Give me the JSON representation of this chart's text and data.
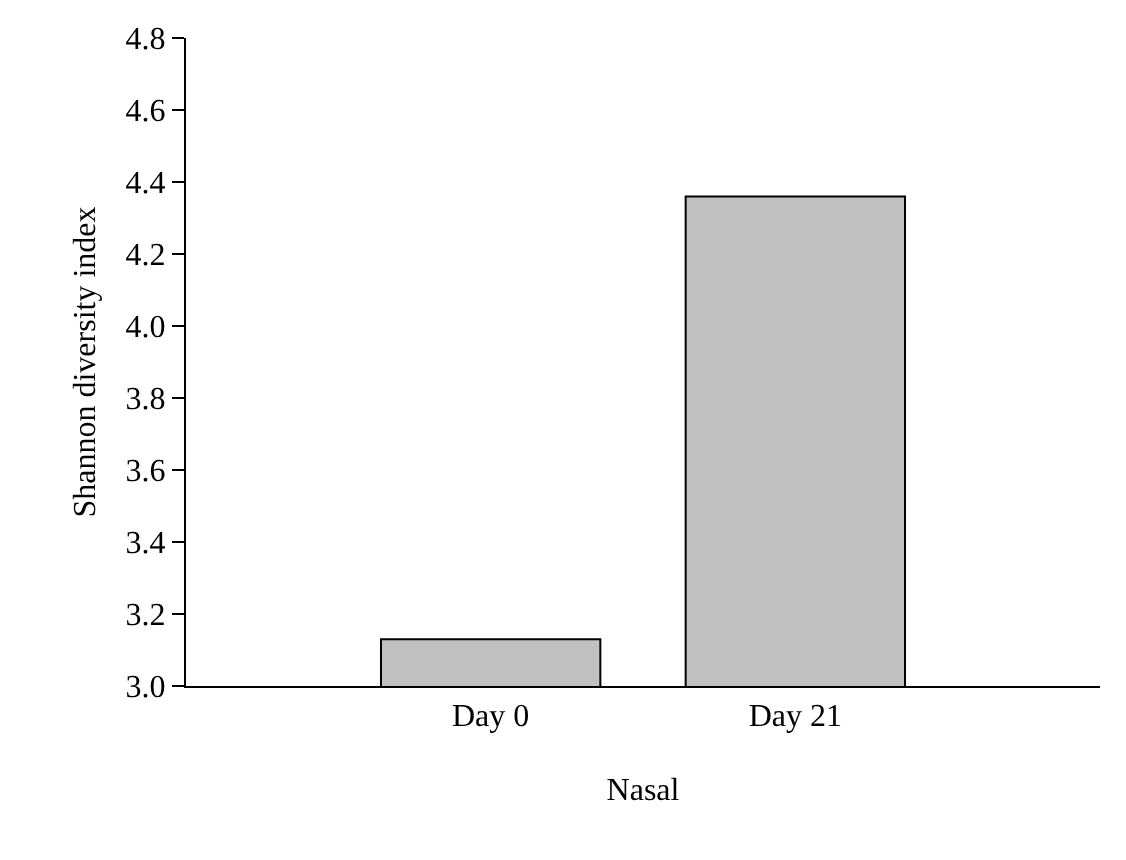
{
  "chart_data": {
    "type": "bar",
    "xlabel": "Nasal",
    "ylabel": "Shannon diversity index",
    "categories": [
      "Day 0",
      "Day 21"
    ],
    "values": [
      3.13,
      4.36
    ],
    "color": "#c0c0c0",
    "ylim": [
      3.0,
      4.8
    ],
    "yticks": [
      {
        "value": 3.0,
        "label": "3.0"
      },
      {
        "value": 3.2,
        "label": "3.2"
      },
      {
        "value": 3.4,
        "label": "3.4"
      },
      {
        "value": 3.6,
        "label": "3.6"
      },
      {
        "value": 3.8,
        "label": "3.8"
      },
      {
        "value": 4.0,
        "label": "4.0"
      },
      {
        "value": 4.2,
        "label": "4.2"
      },
      {
        "value": 4.4,
        "label": "4.4"
      },
      {
        "value": 4.6,
        "label": "4.6"
      },
      {
        "value": 4.8,
        "label": "4.8"
      }
    ]
  }
}
